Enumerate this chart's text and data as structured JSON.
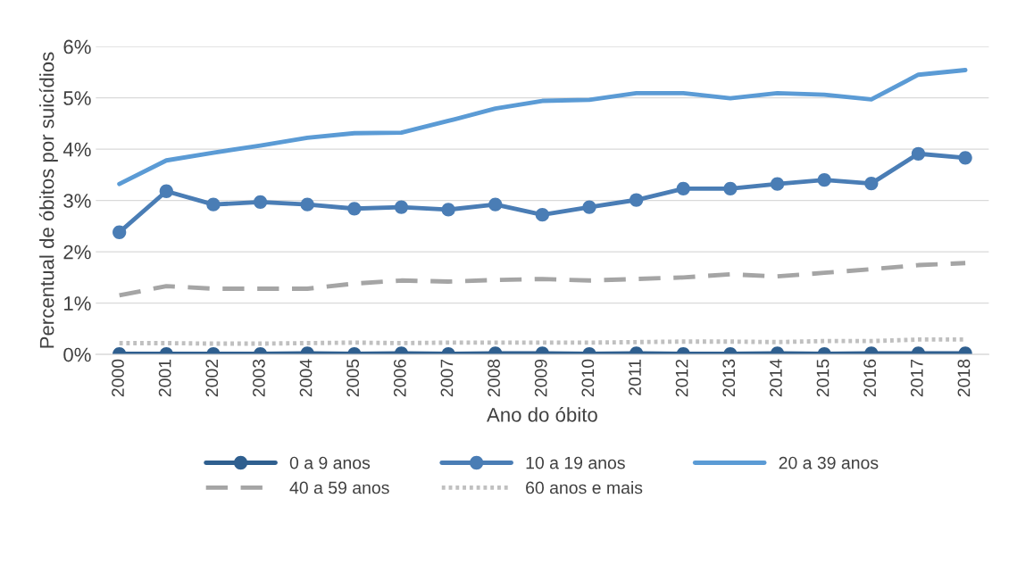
{
  "chart_data": {
    "type": "line",
    "xlabel": "Ano do óbito",
    "ylabel": "Percentual de óbitos por suicídios",
    "categories": [
      "2000",
      "2001",
      "2002",
      "2003",
      "2004",
      "2005",
      "2006",
      "2007",
      "2008",
      "2009",
      "2010",
      "2011",
      "2012",
      "2013",
      "2014",
      "2015",
      "2016",
      "2017",
      "2018"
    ],
    "series": [
      {
        "name": "0 a 9 anos",
        "color": "#2f5f8f",
        "marker": "circle",
        "line_style": "solid",
        "values": [
          0.01,
          0.01,
          0.01,
          0.01,
          0.02,
          0.01,
          0.02,
          0.01,
          0.02,
          0.02,
          0.01,
          0.02,
          0.01,
          0.01,
          0.02,
          0.01,
          0.02,
          0.02,
          0.02
        ]
      },
      {
        "name": "10 a 19 anos",
        "color": "#4a7db5",
        "marker": "circle",
        "line_style": "solid",
        "values": [
          2.38,
          3.18,
          2.92,
          2.97,
          2.92,
          2.84,
          2.87,
          2.82,
          2.92,
          2.72,
          2.87,
          3.01,
          3.23,
          3.23,
          3.32,
          3.4,
          3.33,
          3.91,
          3.83
        ]
      },
      {
        "name": "20 a 39 anos",
        "color": "#5b9bd5",
        "marker": "none",
        "line_style": "solid",
        "values": [
          3.32,
          3.78,
          3.93,
          4.07,
          4.22,
          4.31,
          4.32,
          4.55,
          4.79,
          4.94,
          4.96,
          5.09,
          5.09,
          4.99,
          5.09,
          5.06,
          4.97,
          5.45,
          5.54
        ]
      },
      {
        "name": "40 a 59 anos",
        "color": "#a5a5a5",
        "marker": "none",
        "line_style": "dashed",
        "values": [
          1.15,
          1.33,
          1.28,
          1.28,
          1.28,
          1.38,
          1.44,
          1.42,
          1.45,
          1.47,
          1.44,
          1.47,
          1.5,
          1.56,
          1.52,
          1.59,
          1.66,
          1.74,
          1.78
        ]
      },
      {
        "name": "60 anos e mais",
        "color": "#c0c0c0",
        "marker": "none",
        "line_style": "dotted",
        "values": [
          0.22,
          0.22,
          0.21,
          0.21,
          0.22,
          0.23,
          0.22,
          0.23,
          0.23,
          0.23,
          0.23,
          0.24,
          0.25,
          0.25,
          0.24,
          0.26,
          0.26,
          0.29,
          0.29
        ]
      }
    ],
    "ylim": [
      0,
      6
    ],
    "yticks": [
      {
        "value": 0,
        "label": "0%"
      },
      {
        "value": 1,
        "label": "1%"
      },
      {
        "value": 2,
        "label": "2%"
      },
      {
        "value": 3,
        "label": "3%"
      },
      {
        "value": 4,
        "label": "4%"
      },
      {
        "value": 5,
        "label": "5%"
      },
      {
        "value": 6,
        "label": "6%"
      }
    ],
    "grid": "y",
    "legend": "bottom"
  }
}
